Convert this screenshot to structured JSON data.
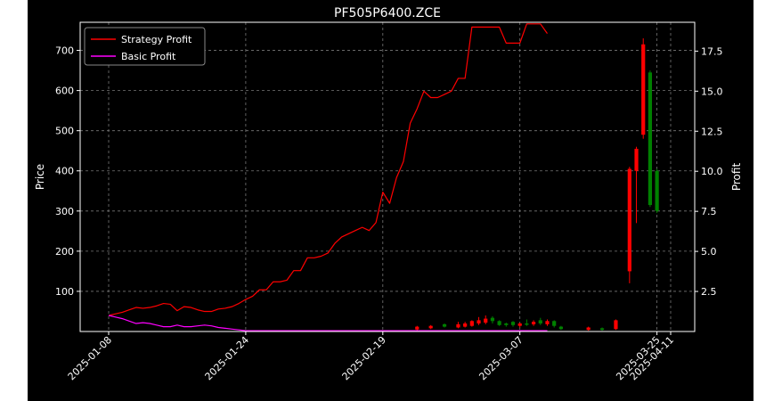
{
  "chart_data": {
    "type": "line",
    "title": "PF505P6400.ZCE",
    "xlabel": "",
    "ylabel": "Price",
    "y2label": "Profit",
    "x_ticks": [
      "2025-01-08",
      "2025-01-24",
      "2025-02-19",
      "2025-03-07",
      "2025-03-25",
      "2025-04-11"
    ],
    "y_ticks": [
      "100",
      "200",
      "300",
      "400",
      "500",
      "600",
      "700"
    ],
    "y2_ticks": [
      "2.5",
      "5.0",
      "7.5",
      "10.0",
      "12.5",
      "15.0",
      "17.5"
    ],
    "ylim": [
      0,
      770
    ],
    "y2lim": [
      0,
      19.3
    ],
    "grid": true,
    "legend_position": "top-left",
    "series": [
      {
        "name": "Strategy Profit",
        "color": "#ff0000",
        "axis": "right",
        "values": [
          1.0,
          1.1,
          1.2,
          1.35,
          1.5,
          1.45,
          1.5,
          1.6,
          1.75,
          1.7,
          1.3,
          1.55,
          1.5,
          1.35,
          1.25,
          1.25,
          1.4,
          1.45,
          1.55,
          1.75,
          2.0,
          2.2,
          2.6,
          2.6,
          3.1,
          3.1,
          3.2,
          3.8,
          3.8,
          4.6,
          4.6,
          4.7,
          4.9,
          5.5,
          5.9,
          6.1,
          6.3,
          6.5,
          6.3,
          6.8,
          8.7,
          8.0,
          9.6,
          10.6,
          13.0,
          13.9,
          15.0,
          14.6,
          14.6,
          14.8,
          15.0,
          15.8,
          15.8,
          19.0,
          19.0,
          19.0,
          19.0,
          19.0,
          18.0,
          18.0,
          18.0,
          19.2,
          19.2,
          19.2,
          18.6
        ]
      },
      {
        "name": "Basic Profit",
        "color": "#ff00ff",
        "axis": "right",
        "values": [
          1.0,
          0.9,
          0.8,
          0.65,
          0.5,
          0.55,
          0.5,
          0.4,
          0.3,
          0.3,
          0.4,
          0.3,
          0.3,
          0.35,
          0.4,
          0.35,
          0.25,
          0.2,
          0.15,
          0.1,
          0.05,
          0.05,
          0.05,
          0.05,
          0.05,
          0.05,
          0.05,
          0.05,
          0.05,
          0.05,
          0.05,
          0.05,
          0.05,
          0.05,
          0.05,
          0.05,
          0.05,
          0.05,
          0.05,
          0.05,
          0.05,
          0.05,
          0.05,
          0.05,
          0.05,
          0.05,
          0.05,
          0.05,
          0.05,
          0.05,
          0.05,
          0.05,
          0.05,
          0.05,
          0.05,
          0.05,
          0.05,
          0.05,
          0.05,
          0.05,
          0.05,
          0.05,
          0.05,
          0.05,
          0.05
        ]
      }
    ],
    "candles": [
      {
        "i": 45,
        "open": 5,
        "close": 12,
        "high": 14,
        "low": 3,
        "color": "#ff0000"
      },
      {
        "i": 47,
        "open": 8,
        "close": 14,
        "high": 16,
        "low": 6,
        "color": "#ff0000"
      },
      {
        "i": 49,
        "open": 18,
        "close": 12,
        "high": 20,
        "low": 10,
        "color": "#008000"
      },
      {
        "i": 51,
        "open": 10,
        "close": 18,
        "high": 24,
        "low": 8,
        "color": "#ff0000"
      },
      {
        "i": 52,
        "open": 12,
        "close": 20,
        "high": 24,
        "low": 10,
        "color": "#ff0000"
      },
      {
        "i": 53,
        "open": 14,
        "close": 26,
        "high": 28,
        "low": 12,
        "color": "#ff0000"
      },
      {
        "i": 54,
        "open": 20,
        "close": 28,
        "high": 36,
        "low": 16,
        "color": "#ff0000"
      },
      {
        "i": 55,
        "open": 22,
        "close": 32,
        "high": 40,
        "low": 18,
        "color": "#ff0000"
      },
      {
        "i": 56,
        "open": 34,
        "close": 26,
        "high": 38,
        "low": 20,
        "color": "#008000"
      },
      {
        "i": 57,
        "open": 26,
        "close": 16,
        "high": 28,
        "low": 14,
        "color": "#008000"
      },
      {
        "i": 58,
        "open": 20,
        "close": 16,
        "high": 22,
        "low": 12,
        "color": "#008000"
      },
      {
        "i": 59,
        "open": 24,
        "close": 16,
        "high": 26,
        "low": 12,
        "color": "#008000"
      },
      {
        "i": 60,
        "open": 14,
        "close": 20,
        "high": 22,
        "low": 10,
        "color": "#ff0000"
      },
      {
        "i": 61,
        "open": 20,
        "close": 18,
        "high": 30,
        "low": 14,
        "color": "#008000"
      },
      {
        "i": 62,
        "open": 18,
        "close": 24,
        "high": 28,
        "low": 14,
        "color": "#ff0000"
      },
      {
        "i": 63,
        "open": 28,
        "close": 20,
        "high": 34,
        "low": 16,
        "color": "#008000"
      },
      {
        "i": 64,
        "open": 18,
        "close": 26,
        "high": 30,
        "low": 14,
        "color": "#ff0000"
      },
      {
        "i": 65,
        "open": 26,
        "close": 14,
        "high": 28,
        "low": 10,
        "color": "#008000"
      },
      {
        "i": 66,
        "open": 12,
        "close": 6,
        "high": 14,
        "low": 4,
        "color": "#008000"
      },
      {
        "i": 70,
        "open": 4,
        "close": 10,
        "high": 12,
        "low": 2,
        "color": "#ff0000"
      },
      {
        "i": 72,
        "open": 8,
        "close": 4,
        "high": 10,
        "low": 2,
        "color": "#008000"
      },
      {
        "i": 74,
        "open": 6,
        "close": 28,
        "high": 30,
        "low": 4,
        "color": "#ff0000"
      },
      {
        "i": 76,
        "open": 150,
        "close": 405,
        "high": 410,
        "low": 120,
        "color": "#ff0000"
      },
      {
        "i": 77,
        "open": 400,
        "close": 455,
        "high": 460,
        "low": 270,
        "color": "#ff0000"
      },
      {
        "i": 78,
        "open": 490,
        "close": 715,
        "high": 730,
        "low": 480,
        "color": "#ff0000"
      },
      {
        "i": 79,
        "open": 645,
        "close": 315,
        "high": 650,
        "low": 310,
        "color": "#008000"
      },
      {
        "i": 80,
        "open": 400,
        "close": 300,
        "high": 405,
        "low": 295,
        "color": "#008000"
      }
    ]
  }
}
